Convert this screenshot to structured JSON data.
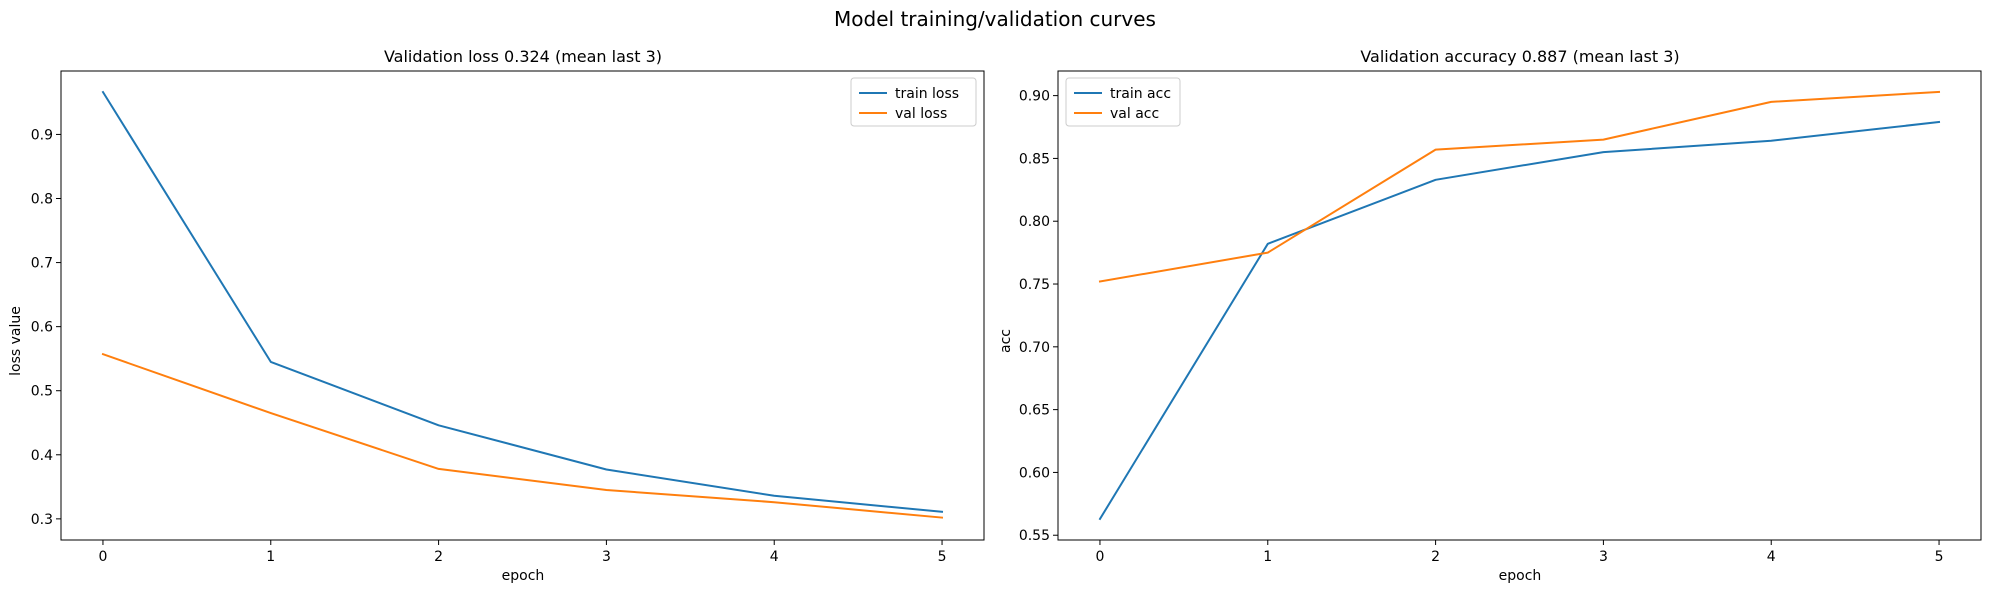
{
  "figure": {
    "suptitle": "Model training/validation curves"
  },
  "chart_data": [
    {
      "type": "line",
      "title": "Validation loss 0.324 (mean last 3)",
      "xlabel": "epoch",
      "ylabel": "loss value",
      "x": [
        0,
        1,
        2,
        3,
        4,
        5
      ],
      "xticks": [
        "0",
        "1",
        "2",
        "3",
        "4",
        "5"
      ],
      "yticks": [
        "0.3",
        "0.4",
        "0.5",
        "0.6",
        "0.7",
        "0.8",
        "0.9"
      ],
      "xlim": [
        -0.25,
        5.25
      ],
      "ylim": [
        0.267,
        0.999
      ],
      "legend": "top-right",
      "grid": false,
      "series": [
        {
          "name": "train loss",
          "color": "#1f77b4",
          "values": [
            0.966,
            0.545,
            0.446,
            0.377,
            0.336,
            0.311
          ]
        },
        {
          "name": "val loss",
          "color": "#ff7f0e",
          "values": [
            0.557,
            0.465,
            0.378,
            0.345,
            0.326,
            0.302
          ]
        }
      ]
    },
    {
      "type": "line",
      "title": "Validation accuracy 0.887 (mean last 3)",
      "xlabel": "epoch",
      "ylabel": "acc",
      "x": [
        0,
        1,
        2,
        3,
        4,
        5
      ],
      "xticks": [
        "0",
        "1",
        "2",
        "3",
        "4",
        "5"
      ],
      "yticks": [
        "0.55",
        "0.60",
        "0.65",
        "0.70",
        "0.75",
        "0.80",
        "0.85",
        "0.90"
      ],
      "xlim": [
        -0.25,
        5.25
      ],
      "ylim": [
        0.5462,
        0.9196
      ],
      "legend": "top-left",
      "grid": false,
      "series": [
        {
          "name": "train acc",
          "color": "#1f77b4",
          "values": [
            0.563,
            0.782,
            0.833,
            0.855,
            0.864,
            0.879
          ]
        },
        {
          "name": "val acc",
          "color": "#ff7f0e",
          "values": [
            0.752,
            0.775,
            0.857,
            0.865,
            0.895,
            0.903
          ]
        }
      ]
    }
  ]
}
